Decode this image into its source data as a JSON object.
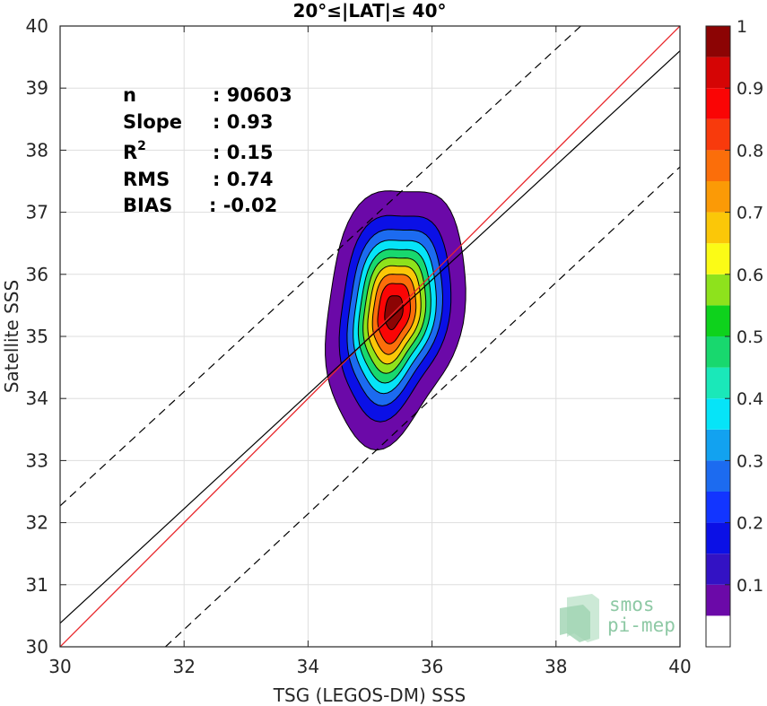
{
  "chart_data": {
    "type": "scatter",
    "title": "20°≤|LAT|≤ 40°",
    "xlabel": "TSG (LEGOS-DM) SSS",
    "ylabel": "Satellite SSS",
    "xlim": [
      30,
      40
    ],
    "ylim": [
      30,
      40
    ],
    "xticks": [
      "30",
      "32",
      "34",
      "36",
      "38",
      "40"
    ],
    "yticks": [
      "30",
      "31",
      "32",
      "33",
      "34",
      "35",
      "36",
      "37",
      "38",
      "39",
      "40"
    ],
    "grid": true,
    "stats": [
      {
        "label": "n",
        "value": ": 90603"
      },
      {
        "label": "Slope",
        "value": ": 0.93"
      },
      {
        "label": "R",
        "sup": "2",
        "value": ": 0.15"
      },
      {
        "label": "RMS",
        "value": ": 0.74"
      },
      {
        "label": "BIAS",
        "value": ": -0.02"
      }
    ],
    "lines": {
      "identity": {
        "color": "#e8262b",
        "x": [
          30,
          40
        ],
        "y": [
          30,
          40
        ]
      },
      "fit": {
        "color": "#000000",
        "x": [
          30,
          40
        ],
        "y": [
          30.38,
          39.6
        ]
      },
      "upper_bound": {
        "color": "#000000",
        "style": "dashed",
        "x": [
          30,
          38.4
        ],
        "y": [
          32.27,
          40
        ]
      },
      "lower_bound": {
        "color": "#000000",
        "style": "dashed",
        "x": [
          31.7,
          40
        ],
        "y": [
          30,
          37.73
        ]
      }
    },
    "density": {
      "center": [
        35.38,
        35.4
      ],
      "spread_x": 0.45,
      "spread_y": 0.85,
      "levels": [
        0.05,
        0.15,
        0.25,
        0.35,
        0.45,
        0.55,
        0.65,
        0.75,
        0.85,
        0.95
      ]
    },
    "colorbar": {
      "ticks": [
        "0.1",
        "0.2",
        "0.3",
        "0.4",
        "0.5",
        "0.6",
        "0.7",
        "0.8",
        "0.9",
        "1"
      ],
      "tick_values": [
        0.1,
        0.2,
        0.3,
        0.4,
        0.5,
        0.6,
        0.7,
        0.8,
        0.9,
        1.0
      ],
      "bins": [
        {
          "from": 0.0,
          "to": 0.05,
          "color": "#ffffff"
        },
        {
          "from": 0.05,
          "to": 0.1,
          "color": "#6b09a8"
        },
        {
          "from": 0.1,
          "to": 0.15,
          "color": "#3312c4"
        },
        {
          "from": 0.15,
          "to": 0.2,
          "color": "#0b10e6"
        },
        {
          "from": 0.2,
          "to": 0.25,
          "color": "#1235ff"
        },
        {
          "from": 0.25,
          "to": 0.3,
          "color": "#1c6bf0"
        },
        {
          "from": 0.3,
          "to": 0.35,
          "color": "#12a2f0"
        },
        {
          "from": 0.35,
          "to": 0.4,
          "color": "#06e4f8"
        },
        {
          "from": 0.4,
          "to": 0.45,
          "color": "#1ae8b9"
        },
        {
          "from": 0.45,
          "to": 0.5,
          "color": "#18d86e"
        },
        {
          "from": 0.5,
          "to": 0.55,
          "color": "#0ed21c"
        },
        {
          "from": 0.55,
          "to": 0.6,
          "color": "#8ee21c"
        },
        {
          "from": 0.6,
          "to": 0.65,
          "color": "#fbfb16"
        },
        {
          "from": 0.65,
          "to": 0.7,
          "color": "#fbc708"
        },
        {
          "from": 0.7,
          "to": 0.75,
          "color": "#fb9a06"
        },
        {
          "from": 0.75,
          "to": 0.8,
          "color": "#fb6e0a"
        },
        {
          "from": 0.8,
          "to": 0.85,
          "color": "#f83a0c"
        },
        {
          "from": 0.85,
          "to": 0.9,
          "color": "#fa0505"
        },
        {
          "from": 0.9,
          "to": 0.95,
          "color": "#d50505"
        },
        {
          "from": 0.95,
          "to": 1.0,
          "color": "#8c0404"
        }
      ]
    }
  },
  "logo": {
    "line1": "smos",
    "line2": "pi-mep"
  }
}
